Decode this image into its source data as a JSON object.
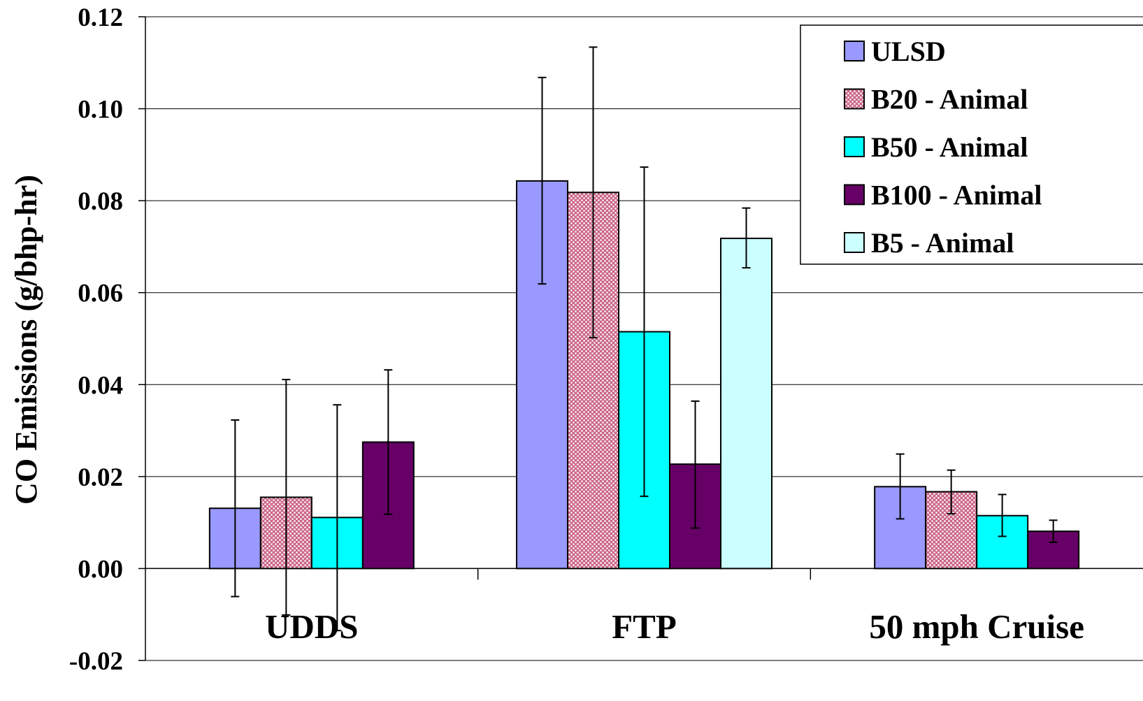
{
  "chart_data": {
    "type": "bar",
    "title": "",
    "xlabel": "",
    "ylabel": "CO Emissions (g/bhp-hr)",
    "ylim": [
      -0.02,
      0.12
    ],
    "y_ticks": [
      "-0.02",
      "0.00",
      "0.02",
      "0.04",
      "0.06",
      "0.08",
      "0.10",
      "0.12"
    ],
    "grid": true,
    "legend_position": "top-right",
    "categories": [
      "UDDS",
      "FTP",
      "50 mph Cruise"
    ],
    "series": [
      {
        "name": "ULSD",
        "color": "#9999ff",
        "pattern": "none",
        "values": [
          0.0131,
          0.0843,
          0.0178
        ],
        "error_low": [
          -0.0061,
          0.0619,
          0.0108
        ],
        "error_high": [
          0.0323,
          0.1068,
          0.0249
        ]
      },
      {
        "name": "B20 - Animal",
        "color": "#cc6688",
        "pattern": "dots",
        "values": [
          0.0155,
          0.0818,
          0.0167
        ],
        "error_low": [
          -0.0101,
          0.0502,
          0.0119
        ],
        "error_high": [
          0.0411,
          0.1134,
          0.0214
        ]
      },
      {
        "name": "B50 - Animal",
        "color": "#00ffff",
        "pattern": "none",
        "values": [
          0.0111,
          0.0515,
          0.0115
        ],
        "error_low": [
          -0.0135,
          0.0157,
          0.007
        ],
        "error_high": [
          0.0356,
          0.0873,
          0.0161
        ]
      },
      {
        "name": "B100 - Animal",
        "color": "#660066",
        "pattern": "none",
        "values": [
          0.0275,
          0.0227,
          0.0081
        ],
        "error_low": [
          0.0118,
          0.0088,
          0.0057
        ],
        "error_high": [
          0.0432,
          0.0364,
          0.0105
        ]
      },
      {
        "name": "B5 - Animal",
        "color": "#ccffff",
        "pattern": "none",
        "values": [
          null,
          0.0718,
          null
        ],
        "error_low": [
          null,
          0.0654,
          null
        ],
        "error_high": [
          null,
          0.0784,
          null
        ]
      }
    ]
  }
}
